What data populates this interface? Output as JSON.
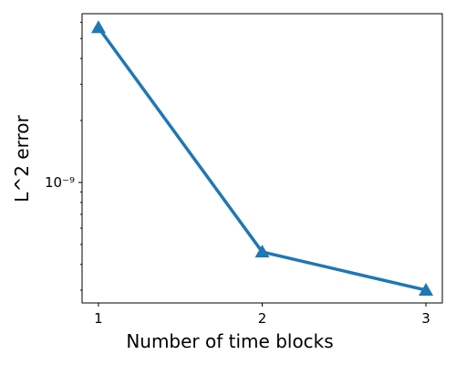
{
  "chart_data": {
    "type": "line",
    "xlabel": "Number of time blocks",
    "ylabel": "L^2 error",
    "x": [
      1,
      2,
      3
    ],
    "series": [
      {
        "name": "L^2 error",
        "color": "#1f77b4",
        "marker": "triangle",
        "values": [
          5.65e-09,
          4.6e-10,
          3e-10
        ]
      }
    ],
    "xlim": [
      0.9,
      3.1
    ],
    "xticks": [
      1,
      2,
      3
    ],
    "ylim": [
      2.6e-10,
      6.6e-09
    ],
    "yscale": "log",
    "yticks": [
      {
        "value": 1e-09,
        "label": "10⁻⁹"
      }
    ],
    "minor_yticks": [
      3e-10,
      4e-10,
      5e-10,
      6e-10,
      7e-10,
      8e-10,
      9e-10,
      2e-09,
      3e-09,
      4e-09,
      5e-09,
      6e-09
    ],
    "grid": false
  }
}
